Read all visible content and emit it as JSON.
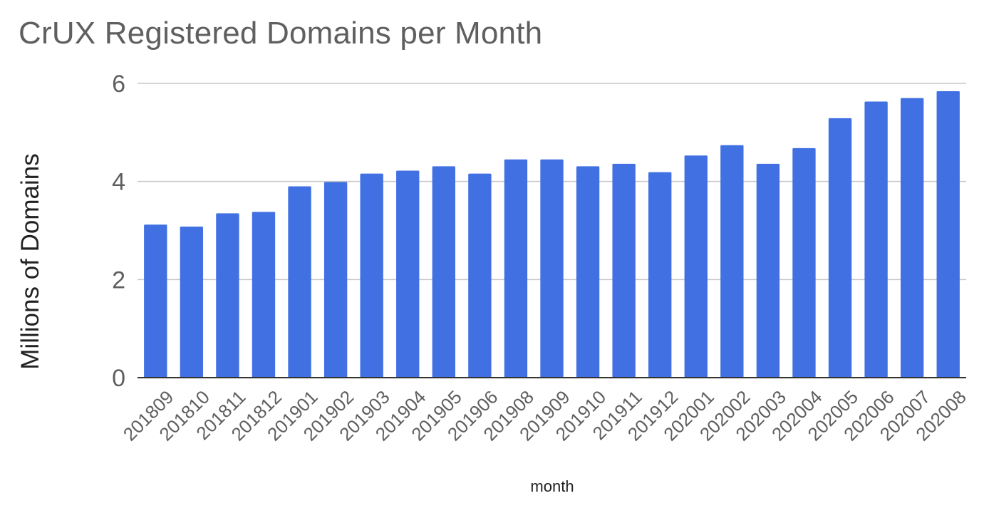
{
  "chart_data": {
    "type": "bar",
    "title": "CrUX Registered Domains per Month",
    "xlabel": "month",
    "ylabel": "Millions of Domains",
    "ylim": [
      0,
      6
    ],
    "yticks": [
      0,
      2,
      4,
      6
    ],
    "grid": true,
    "legend": "none",
    "categories": [
      "201809",
      "201810",
      "201811",
      "201812",
      "201901",
      "201902",
      "201903",
      "201904",
      "201905",
      "201906",
      "201908",
      "201909",
      "201910",
      "201911",
      "201912",
      "202001",
      "202002",
      "202003",
      "202004",
      "202005",
      "202006",
      "202007",
      "202008"
    ],
    "values": [
      3.12,
      3.08,
      3.35,
      3.38,
      3.9,
      3.99,
      4.16,
      4.22,
      4.31,
      4.16,
      4.45,
      4.45,
      4.31,
      4.36,
      4.19,
      4.53,
      4.74,
      4.36,
      4.68,
      5.29,
      5.63,
      5.7,
      5.84
    ],
    "colors": {
      "bar": "#4170e3",
      "grid": "#c6c6c6",
      "axis": "#333333",
      "title": "#5f5f5f",
      "tick": "#5f5f5f",
      "label": "#222222"
    }
  }
}
